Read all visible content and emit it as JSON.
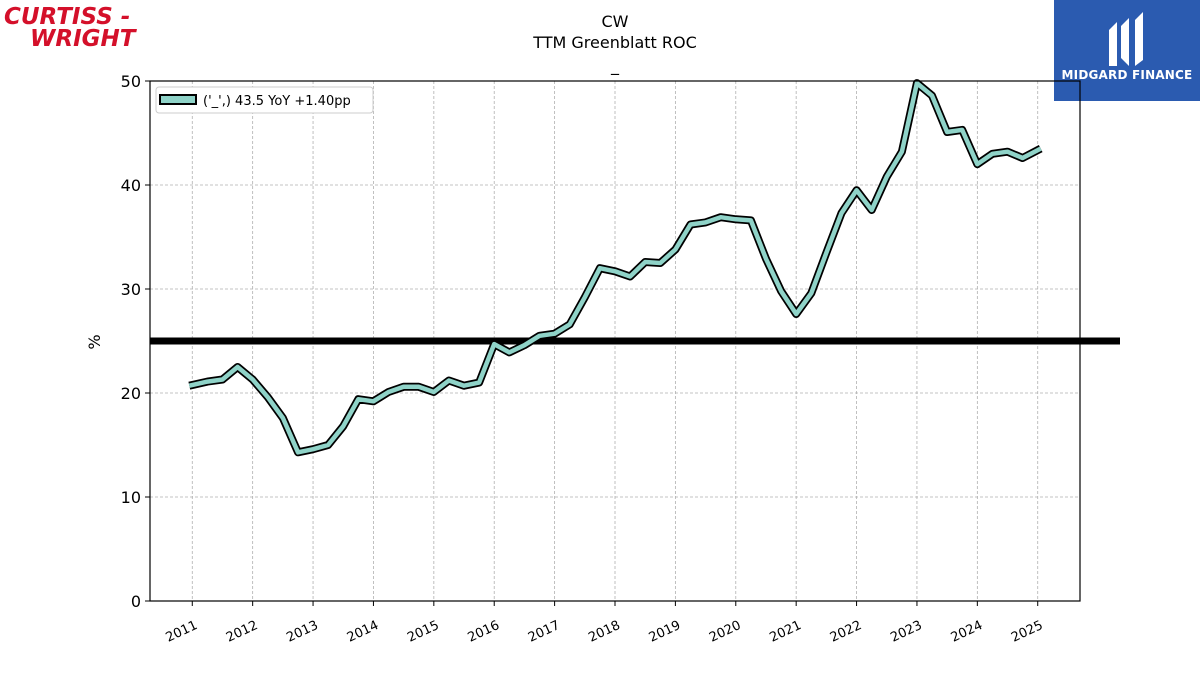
{
  "logos": {
    "left_line1": "CURTISS -",
    "left_line2": "WRIGHT",
    "right_text": "MIDGARD FINANCE"
  },
  "colors": {
    "series_fill": "#8fd3c8",
    "series_edge": "#000000",
    "reference_line": "#000000",
    "logo_left": "#d4102a",
    "logo_right_bg": "#2b5bb0"
  },
  "chart_data": {
    "type": "line",
    "title": "CW",
    "subtitle": "TTM Greenblatt ROC",
    "subsubtitle": "_",
    "xlabel": "",
    "ylabel": "%",
    "ylim": [
      0,
      50
    ],
    "yticks": [
      "0",
      "10",
      "20",
      "30",
      "40",
      "50"
    ],
    "xlim": [
      2010.3,
      2025.7
    ],
    "xticks": [
      {
        "value": 2011,
        "label": "2011"
      },
      {
        "value": 2012,
        "label": "2012"
      },
      {
        "value": 2013,
        "label": "2013"
      },
      {
        "value": 2014,
        "label": "2014"
      },
      {
        "value": 2015,
        "label": "2015"
      },
      {
        "value": 2016,
        "label": "2016"
      },
      {
        "value": 2017,
        "label": "2017"
      },
      {
        "value": 2018,
        "label": "2018"
      },
      {
        "value": 2019,
        "label": "2019"
      },
      {
        "value": 2020,
        "label": "2020"
      },
      {
        "value": 2021,
        "label": "2021"
      },
      {
        "value": 2022,
        "label": "2022"
      },
      {
        "value": 2023,
        "label": "2023"
      },
      {
        "value": 2024,
        "label": "2024"
      },
      {
        "value": 2025,
        "label": "2025"
      }
    ],
    "grid": true,
    "legend": {
      "position": "top-left",
      "label": "('_',) 43.5 YoY +1.40pp"
    },
    "reference_line": {
      "y": 25
    },
    "series": [
      {
        "x": [
          2010.95,
          2011.25,
          2011.5,
          2011.75,
          2012.0,
          2012.25,
          2012.5,
          2012.75,
          2013.0,
          2013.25,
          2013.5,
          2013.75,
          2014.0,
          2014.25,
          2014.5,
          2014.75,
          2015.0,
          2015.25,
          2015.5,
          2015.75,
          2016.0,
          2016.25,
          2016.5,
          2016.75,
          2017.0,
          2017.25,
          2017.5,
          2017.75,
          2018.0,
          2018.25,
          2018.5,
          2018.75,
          2019.0,
          2019.25,
          2019.5,
          2019.75,
          2020.0,
          2020.25,
          2020.5,
          2020.75,
          2021.0,
          2021.25,
          2021.5,
          2021.75,
          2022.0,
          2022.25,
          2022.5,
          2022.75,
          2023.0,
          2023.25,
          2023.5,
          2023.75,
          2024.0,
          2024.25,
          2024.5,
          2024.75,
          2025.05
        ],
        "values": [
          20.7,
          21.1,
          21.3,
          22.5,
          21.3,
          19.6,
          17.6,
          14.3,
          14.6,
          15.0,
          16.8,
          19.4,
          19.2,
          20.1,
          20.6,
          20.6,
          20.1,
          21.2,
          20.7,
          21.0,
          24.7,
          23.9,
          24.6,
          25.5,
          25.7,
          26.6,
          29.2,
          32.0,
          31.7,
          31.2,
          32.6,
          32.5,
          33.8,
          36.2,
          36.4,
          36.9,
          36.7,
          36.6,
          32.9,
          29.8,
          27.6,
          29.6,
          33.5,
          37.3,
          39.5,
          37.6,
          40.8,
          43.2,
          49.8,
          48.6,
          45.1,
          45.3,
          42.0,
          43.0,
          43.2,
          42.6,
          43.5
        ]
      }
    ]
  }
}
